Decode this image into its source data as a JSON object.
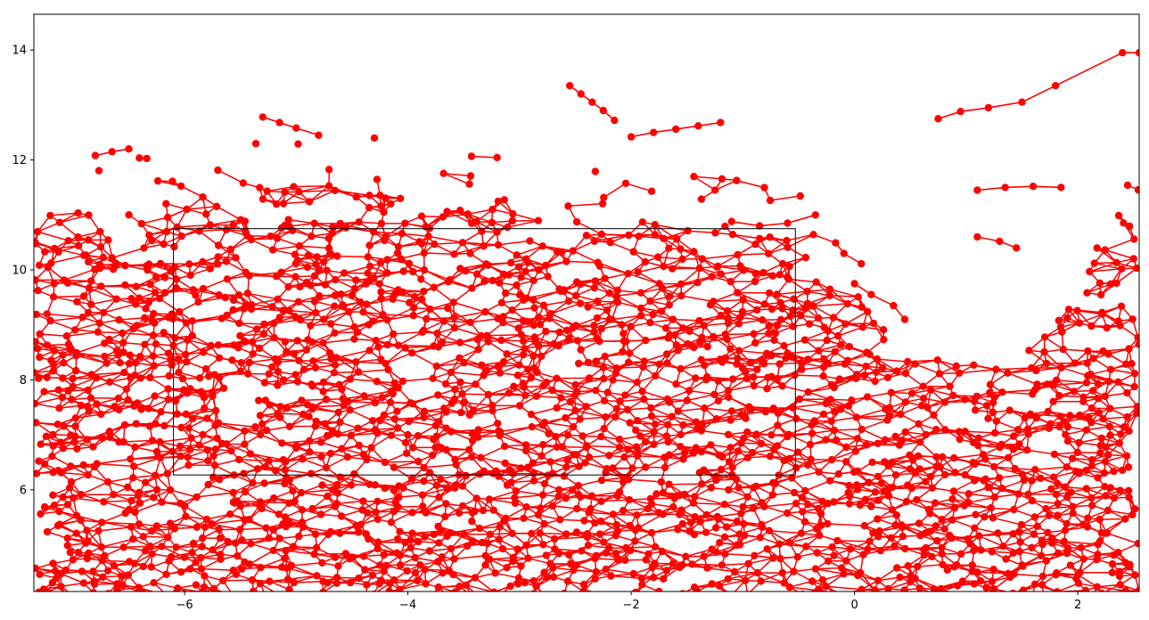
{
  "chart_data": {
    "type": "scatter",
    "title": "",
    "xlabel": "",
    "ylabel": "",
    "xlim": [
      -7.35,
      2.55
    ],
    "ylim": [
      4.15,
      14.65
    ],
    "grid": false,
    "legend": null,
    "color": "#ff0000",
    "style": "line with circle markers (network graph of connected nodes)",
    "x_ticks": [
      {
        "value": -6,
        "label": "−6"
      },
      {
        "value": -4,
        "label": "−4"
      },
      {
        "value": -2,
        "label": "−2"
      },
      {
        "value": 0,
        "label": "0"
      },
      {
        "value": 2,
        "label": "2"
      }
    ],
    "y_ticks": [
      {
        "value": 6,
        "label": "6"
      },
      {
        "value": 8,
        "label": "8"
      },
      {
        "value": 10,
        "label": "10"
      },
      {
        "value": 12,
        "label": "12"
      },
      {
        "value": 14,
        "label": "14"
      }
    ],
    "annotations": [
      {
        "type": "rectangle",
        "x": [
          -6.1,
          -0.53
        ],
        "y": [
          6.27,
          10.75
        ],
        "color": "#000000"
      }
    ],
    "branches": [
      {
        "points": [
          [
            -2.55,
            13.35
          ],
          [
            -2.45,
            13.2
          ],
          [
            -2.35,
            13.05
          ],
          [
            -2.25,
            12.9
          ],
          [
            -2.15,
            12.72
          ]
        ]
      },
      {
        "points": [
          [
            -2.0,
            12.42
          ],
          [
            -1.8,
            12.5
          ],
          [
            -1.6,
            12.56
          ],
          [
            -1.4,
            12.62
          ],
          [
            -1.2,
            12.68
          ]
        ]
      },
      {
        "points": [
          [
            -5.3,
            12.78
          ],
          [
            -5.15,
            12.68
          ],
          [
            -5.0,
            12.58
          ],
          [
            -4.8,
            12.45
          ]
        ]
      },
      {
        "points": [
          [
            -6.8,
            12.08
          ],
          [
            -6.65,
            12.15
          ],
          [
            -6.5,
            12.2
          ]
        ]
      },
      {
        "points": [
          [
            0.75,
            12.75
          ],
          [
            0.95,
            12.88
          ],
          [
            1.2,
            12.95
          ],
          [
            1.5,
            13.05
          ],
          [
            1.8,
            13.35
          ],
          [
            2.4,
            13.95
          ],
          [
            2.55,
            13.95
          ]
        ]
      },
      {
        "points": [
          [
            1.1,
            11.45
          ],
          [
            1.35,
            11.5
          ],
          [
            1.6,
            11.52
          ],
          [
            1.85,
            11.5
          ]
        ]
      },
      {
        "points": [
          [
            1.1,
            10.6
          ],
          [
            1.3,
            10.52
          ],
          [
            1.45,
            10.4
          ]
        ]
      },
      {
        "points": [
          [
            0.0,
            9.75
          ],
          [
            0.15,
            9.55
          ],
          [
            0.35,
            9.35
          ],
          [
            0.45,
            9.1
          ]
        ]
      },
      {
        "points": [
          [
            -0.35,
            11.0
          ],
          [
            -0.6,
            10.85
          ],
          [
            -0.85,
            10.8
          ],
          [
            -1.1,
            10.88
          ]
        ]
      }
    ]
  }
}
